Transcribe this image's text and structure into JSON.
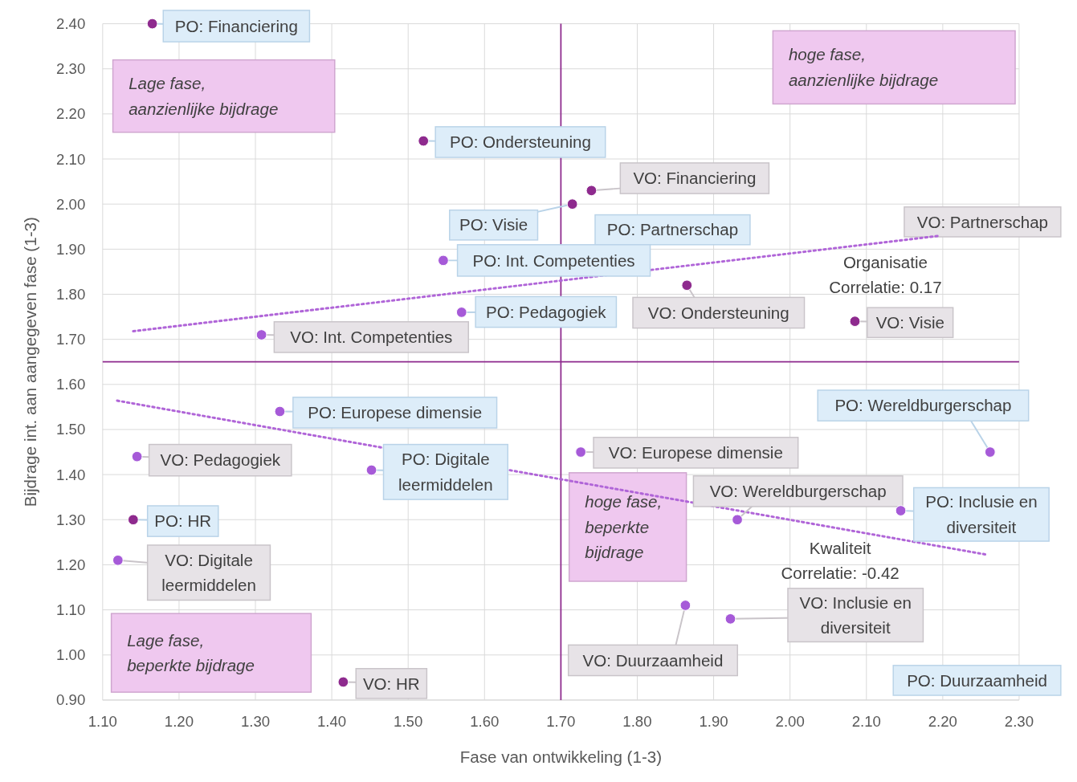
{
  "chart_data": {
    "type": "scatter",
    "xlabel": "Fase van ontwikkeling (1-3)",
    "ylabel": "Bijdrage int. aan aangegeven fase (1-3)",
    "xlim": [
      1.1,
      2.3
    ],
    "xticks": [
      {
        "value": 1.1,
        "label": "1.10"
      },
      {
        "value": 1.2,
        "label": "1.20"
      },
      {
        "value": 1.3,
        "label": "1.30"
      },
      {
        "value": 1.4,
        "label": "1.40"
      },
      {
        "value": 1.5,
        "label": "1.50"
      },
      {
        "value": 1.6,
        "label": "1.60"
      },
      {
        "value": 1.7,
        "label": "1.70"
      },
      {
        "value": 1.8,
        "label": "1.80"
      },
      {
        "value": 1.9,
        "label": "1.90"
      },
      {
        "value": 2.0,
        "label": "2.00"
      },
      {
        "value": 2.1,
        "label": "2.10"
      },
      {
        "value": 2.2,
        "label": "2.20"
      },
      {
        "value": 2.3,
        "label": "2.30"
      }
    ],
    "ylim": [
      0.9,
      2.4
    ],
    "yticks": [
      {
        "value": 0.9,
        "label": "0.90"
      },
      {
        "value": 1.0,
        "label": "1.00"
      },
      {
        "value": 1.1,
        "label": "1.10"
      },
      {
        "value": 1.2,
        "label": "1.20"
      },
      {
        "value": 1.3,
        "label": "1.30"
      },
      {
        "value": 1.4,
        "label": "1.40"
      },
      {
        "value": 1.5,
        "label": "1.50"
      },
      {
        "value": 1.6,
        "label": "1.60"
      },
      {
        "value": 1.7,
        "label": "1.70"
      },
      {
        "value": 1.8,
        "label": "1.80"
      },
      {
        "value": 1.9,
        "label": "1.90"
      },
      {
        "value": 2.0,
        "label": "2.00"
      },
      {
        "value": 2.1,
        "label": "2.10"
      },
      {
        "value": 2.2,
        "label": "2.20"
      },
      {
        "value": 2.3,
        "label": "2.30"
      },
      {
        "value": 2.4,
        "label": "2.40"
      }
    ],
    "grid": true,
    "marker": "circle",
    "series": [
      {
        "color": "#8e2a8e",
        "x": [
          1.165,
          1.52,
          1.74,
          1.715,
          1.865,
          2.085,
          1.14,
          1.415
        ],
        "values": [
          2.4,
          2.14,
          2.03,
          2.0,
          1.82,
          1.74,
          1.3,
          0.94
        ],
        "value_labels": [
          "PO: Financiering",
          "PO: Ondersteuning",
          "VO: Financiering",
          "PO: Visie",
          "VO: Ondersteuning",
          "VO: Visie",
          "PO: HR",
          "VO: HR"
        ]
      },
      {
        "color": "#a65ad8",
        "x": [
          1.546,
          1.57,
          1.308,
          1.332,
          1.145,
          1.452,
          1.726,
          2.262,
          1.931,
          2.145,
          1.12,
          1.863,
          1.922
        ],
        "values": [
          1.875,
          1.76,
          1.71,
          1.54,
          1.44,
          1.41,
          1.45,
          1.45,
          1.3,
          1.32,
          1.21,
          1.11,
          1.08
        ],
        "value_labels": [
          "PO: Int. Competenties",
          "PO: Pedagogiek",
          "VO: Int. Competenties",
          "PO: Europese dimensie",
          "VO: Pedagogiek",
          "PO: Digitale leermiddelen",
          "VO: Europese dimensie",
          "PO: Wereldburgerschap",
          "VO: Wereldburgerschap",
          "PO: Inclusie en diversiteit",
          "VO: Digitale leermiddelen",
          "VO: Duurzaamheid",
          "VO: Inclusie en diversiteit"
        ]
      },
      {
        "type": "line",
        "color": "#b065d8",
        "line_style": "dotted",
        "marker": "none",
        "x": [
          1.14,
          2.197
        ],
        "values": [
          1.718,
          1.93
        ]
      },
      {
        "type": "line",
        "color": "#b065d8",
        "line_style": "dotted",
        "marker": "none",
        "x": [
          1.119,
          2.259
        ],
        "values": [
          1.564,
          1.222
        ]
      }
    ],
    "ref_lines": [
      {
        "axis": "x",
        "value": 1.7,
        "color": "#8e2a8e"
      },
      {
        "axis": "y",
        "value": 1.65,
        "color": "#8e2a8e"
      }
    ],
    "annotations": [
      "Lage fase,\naanzienlijke bijdrage",
      "hoge fase,\naanzienlijke bijdrage",
      "hoge fase,\nbeperkte\nbijdrage",
      "Lage fase,\nbeperkte bijdrage",
      "Organisatie\nCorrelatie: 0.17",
      "Kwaliteit\nCorrelatie: -0.42",
      "PO: Partnerschap",
      "VO: Partnerschap",
      "PO: Duurzaamheid"
    ]
  }
}
